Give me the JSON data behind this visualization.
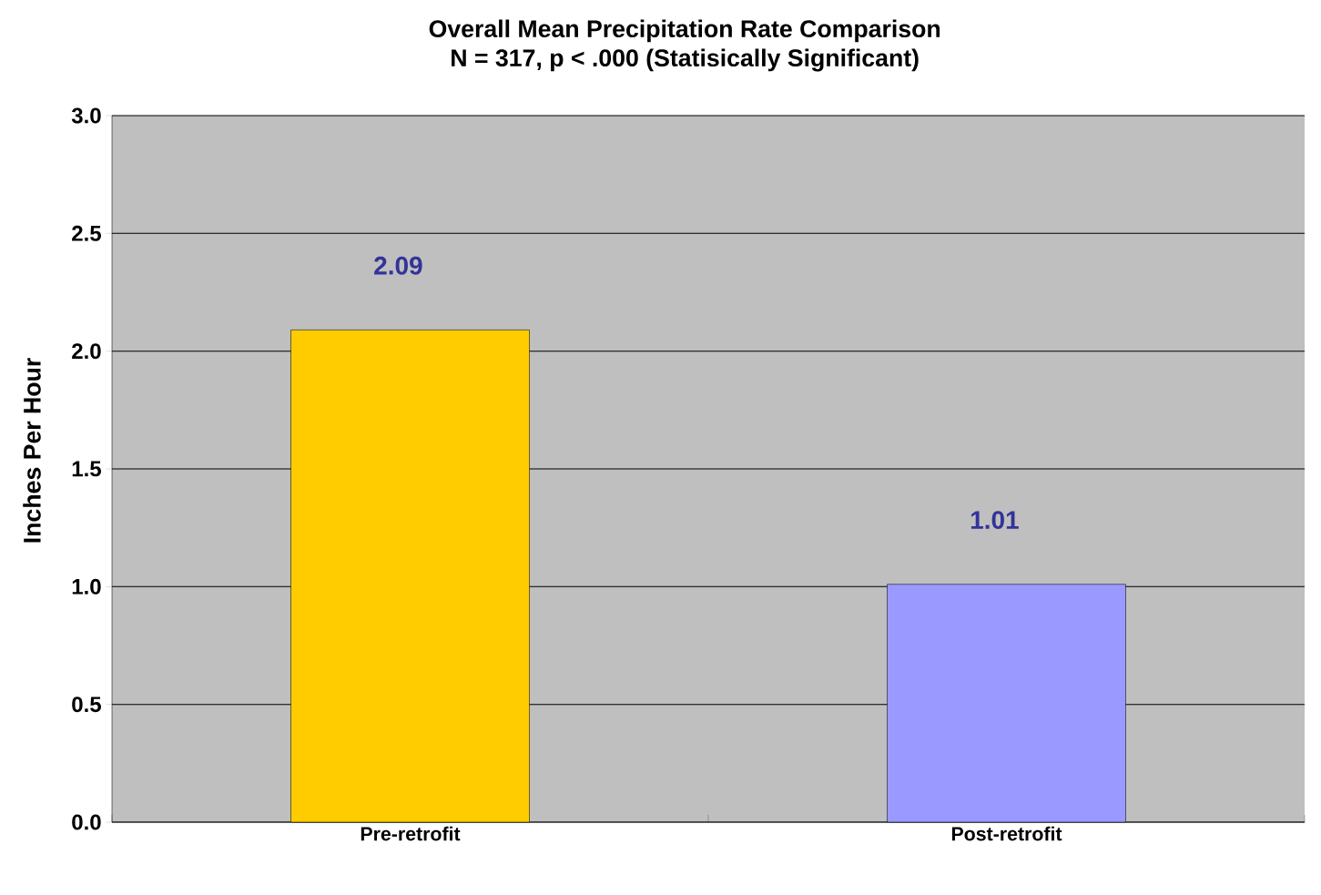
{
  "chart_data": {
    "type": "bar",
    "title": "Overall Mean Precipitation Rate Comparison",
    "subtitle": "N = 317, p < .000 (Statisically Significant)",
    "ylabel": "Inches Per Hour",
    "categories": [
      "Pre-retrofit",
      "Post-retrofit"
    ],
    "values": [
      2.09,
      1.01
    ],
    "colors": [
      "#ffcc00",
      "#9999ff"
    ],
    "data_labels": true,
    "ylim": [
      0,
      3
    ],
    "yticks": [
      {
        "value": 0,
        "label": "0.0"
      },
      {
        "value": 0.5,
        "label": "0.5"
      },
      {
        "value": 1,
        "label": "1.0"
      },
      {
        "value": 1.5,
        "label": "1.5"
      },
      {
        "value": 2,
        "label": "2.0"
      },
      {
        "value": 2.5,
        "label": "2.5"
      },
      {
        "value": 3,
        "label": "3.0"
      }
    ],
    "grid": "y"
  }
}
